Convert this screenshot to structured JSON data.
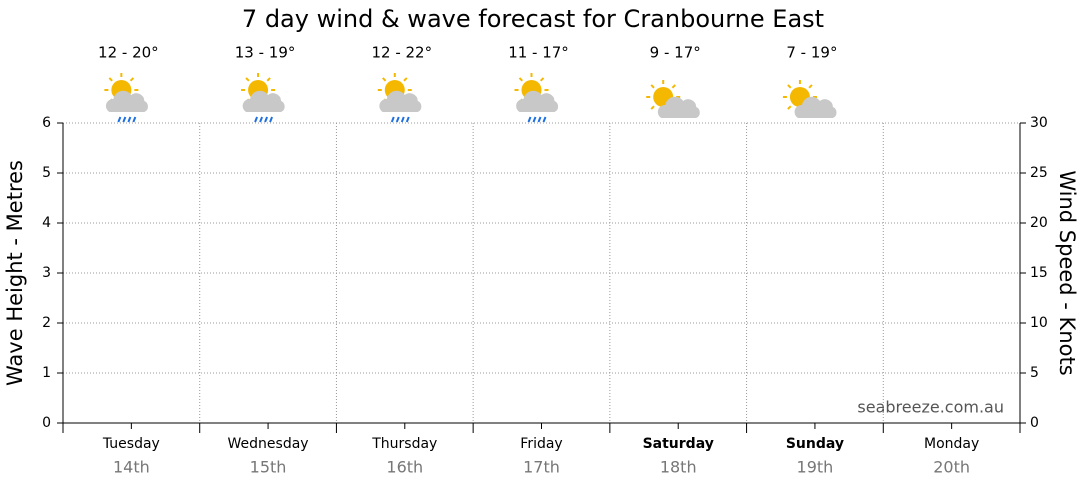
{
  "chart_data": {
    "type": "line",
    "title": "7 day wind & wave forecast for Cranbourne East",
    "y_label": "Wave Height - Metres",
    "y2_label": "Wind Speed - Knots",
    "categories": [
      "Tuesday",
      "Wednesday",
      "Thursday",
      "Friday",
      "Saturday",
      "Sunday",
      "Monday"
    ],
    "dates": [
      "14th",
      "15th",
      "16th",
      "17th",
      "18th",
      "19th",
      "20th"
    ],
    "weekend": [
      false,
      false,
      false,
      false,
      true,
      true,
      false
    ],
    "temperatures": [
      "12 - 20°",
      "13 - 19°",
      "12 - 22°",
      "11 - 17°",
      "9 - 17°",
      "7 - 19°",
      null
    ],
    "forecast_icons": [
      "showers",
      "showers",
      "showers",
      "showers",
      "partly-cloudy",
      "partly-cloudy",
      null
    ],
    "ylim": [
      0,
      6
    ],
    "yticks": [
      0,
      1,
      2,
      3,
      4,
      5,
      6
    ],
    "y2lim": [
      0,
      30
    ],
    "y2ticks": [
      0,
      5,
      10,
      15,
      20,
      25,
      30
    ],
    "grid": true,
    "series": [],
    "watermark": "seabreeze.com.au"
  }
}
